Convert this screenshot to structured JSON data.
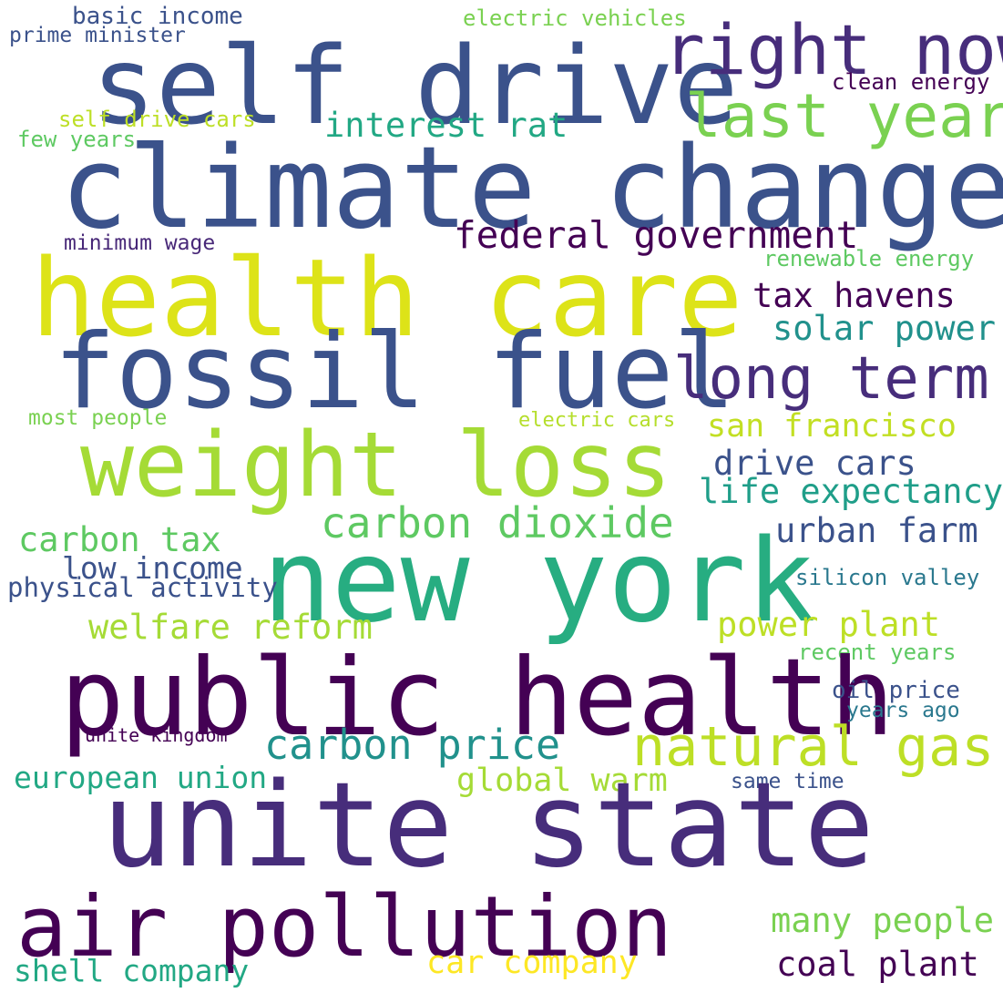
{
  "words": [
    {
      "text": "basic income",
      "color": "#3b528b"
    },
    {
      "text": "prime minister",
      "color": "#3b528b"
    },
    {
      "text": "electric vehicles",
      "color": "#7ad151"
    },
    {
      "text": "self drive",
      "color": "#3b528b"
    },
    {
      "text": "right now",
      "color": "#472d7b"
    },
    {
      "text": "clean energy",
      "color": "#440154"
    },
    {
      "text": "last year",
      "color": "#7ad151"
    },
    {
      "text": "self drive cars",
      "color": "#bddf26"
    },
    {
      "text": "interest rat",
      "color": "#22a884"
    },
    {
      "text": "few years",
      "color": "#5ec962"
    },
    {
      "text": "climate change",
      "color": "#3b528b"
    },
    {
      "text": "federal government",
      "color": "#440154"
    },
    {
      "text": "minimum wage",
      "color": "#482878"
    },
    {
      "text": "renewable energy",
      "color": "#5ec962"
    },
    {
      "text": "health care",
      "color": "#dde318"
    },
    {
      "text": "tax havens",
      "color": "#440154"
    },
    {
      "text": "solar power",
      "color": "#21918c"
    },
    {
      "text": "fossil fuel",
      "color": "#3b528b"
    },
    {
      "text": "long term",
      "color": "#472d7b"
    },
    {
      "text": "most people",
      "color": "#7ad151"
    },
    {
      "text": "electric cars",
      "color": "#b5de2b"
    },
    {
      "text": "san francisco",
      "color": "#c2df23"
    },
    {
      "text": "weight loss",
      "color": "#a5db36"
    },
    {
      "text": "drive cars",
      "color": "#3b528b"
    },
    {
      "text": "life expectancy",
      "color": "#1f9e89"
    },
    {
      "text": "carbon dioxide",
      "color": "#5ec962"
    },
    {
      "text": "carbon tax",
      "color": "#5ec962"
    },
    {
      "text": "urban farm",
      "color": "#3b528b"
    },
    {
      "text": "low income",
      "color": "#3b528b"
    },
    {
      "text": "new york",
      "color": "#27ad81"
    },
    {
      "text": "physical activity",
      "color": "#3b528b"
    },
    {
      "text": "silicon valley",
      "color": "#2a788e"
    },
    {
      "text": "welfare reform",
      "color": "#a5db36"
    },
    {
      "text": "power plant",
      "color": "#bddf26"
    },
    {
      "text": "recent years",
      "color": "#5ec962"
    },
    {
      "text": "public health",
      "color": "#440154"
    },
    {
      "text": "oil price",
      "color": "#3b528b"
    },
    {
      "text": "years ago",
      "color": "#2a788e"
    },
    {
      "text": "unite kingdom",
      "color": "#440154"
    },
    {
      "text": "carbon price",
      "color": "#21918c"
    },
    {
      "text": "natural gas",
      "color": "#bddf26"
    },
    {
      "text": "european union",
      "color": "#22a884"
    },
    {
      "text": "global warm",
      "color": "#a5db36"
    },
    {
      "text": "same time",
      "color": "#3b528b"
    },
    {
      "text": "unite state",
      "color": "#472d7b"
    },
    {
      "text": "air pollution",
      "color": "#440154"
    },
    {
      "text": "many people",
      "color": "#7ad151"
    },
    {
      "text": "car company",
      "color": "#fde725"
    },
    {
      "text": "coal plant",
      "color": "#440154"
    },
    {
      "text": "shell company",
      "color": "#22a884"
    }
  ]
}
